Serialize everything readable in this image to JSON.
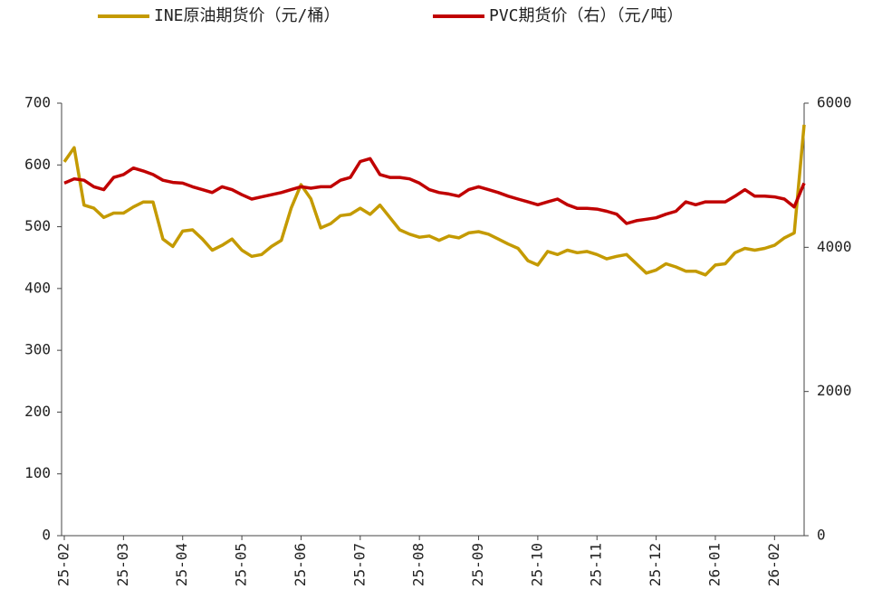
{
  "chart_data": {
    "type": "line",
    "categories": [
      "25-02",
      null,
      null,
      null,
      null,
      null,
      "25-03",
      null,
      null,
      null,
      null,
      null,
      "25-04",
      null,
      null,
      null,
      null,
      null,
      "25-05",
      null,
      null,
      null,
      null,
      null,
      "25-06",
      null,
      null,
      null,
      null,
      null,
      "25-07",
      null,
      null,
      null,
      null,
      null,
      "25-08",
      null,
      null,
      null,
      null,
      null,
      "25-09",
      null,
      null,
      null,
      null,
      null,
      "25-10",
      null,
      null,
      null,
      null,
      null,
      "25-11",
      null,
      null,
      null,
      null,
      null,
      "25-12",
      null,
      null,
      null,
      null,
      null,
      "26-01",
      null,
      null,
      null,
      null,
      null,
      "26-02",
      null,
      null,
      null
    ],
    "series": [
      {
        "name": "INE原油期货价（元/桶）",
        "color": "#c49a00",
        "values": [
          605,
          628,
          535,
          530,
          515,
          522,
          522,
          532,
          540,
          540,
          480,
          468,
          493,
          495,
          480,
          462,
          470,
          480,
          462,
          452,
          455,
          468,
          478,
          530,
          568,
          545,
          498,
          505,
          518,
          520,
          530,
          520,
          535,
          515,
          495,
          488,
          483,
          485,
          478,
          485,
          482,
          490,
          492,
          488,
          480,
          472,
          465,
          445,
          438,
          460,
          455,
          462,
          458,
          460,
          455,
          448,
          452,
          455,
          440,
          425,
          430,
          440,
          435,
          428,
          428,
          422,
          438,
          440,
          458,
          465,
          462,
          465,
          470,
          482,
          490,
          665
        ]
      },
      {
        "name": "PVC期货价（右）（元/吨）",
        "color": "#c00000",
        "axis": "y2",
        "values": [
          4890,
          4950,
          4930,
          4840,
          4800,
          4970,
          5010,
          5100,
          5060,
          5010,
          4930,
          4900,
          4890,
          4840,
          4800,
          4760,
          4840,
          4800,
          4730,
          4670,
          4700,
          4730,
          4760,
          4800,
          4840,
          4820,
          4840,
          4840,
          4930,
          4970,
          5190,
          5230,
          5010,
          4970,
          4970,
          4950,
          4890,
          4800,
          4760,
          4740,
          4710,
          4800,
          4840,
          4800,
          4760,
          4710,
          4670,
          4630,
          4590,
          4630,
          4670,
          4590,
          4540,
          4540,
          4530,
          4500,
          4460,
          4330,
          4370,
          4390,
          4410,
          4460,
          4500,
          4630,
          4590,
          4630,
          4630,
          4630,
          4710,
          4800,
          4710,
          4710,
          4700,
          4670,
          4560,
          4890
        ]
      }
    ],
    "ylim": [
      0,
      700
    ],
    "yticks": [
      0,
      100,
      200,
      300,
      400,
      500,
      600,
      700
    ],
    "y2lim": [
      0,
      6000
    ],
    "y2ticks": [
      0,
      2000,
      4000,
      6000
    ],
    "legend": "top"
  }
}
